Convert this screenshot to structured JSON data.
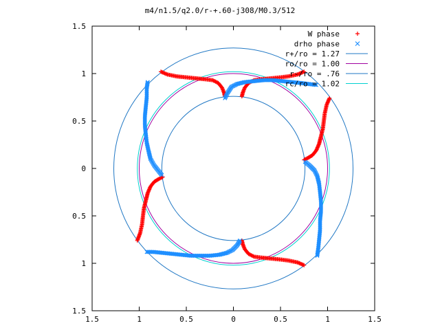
{
  "chart_data": {
    "type": "scatter",
    "title": "m4/n1.5/q2.0/r-+.60-j308/M0.3/512",
    "xlim": [
      -1.5,
      1.5
    ],
    "ylim": [
      -1.5,
      1.5
    ],
    "xticks": [
      -1.5,
      -1,
      -0.5,
      0,
      0.5,
      1,
      1.5
    ],
    "yticks": [
      -1.5,
      -1,
      -0.5,
      0,
      0.5,
      1,
      1.5
    ],
    "xtick_labels": [
      "1.5",
      "1",
      "0.5",
      "0",
      "0.5",
      "1",
      "1.5"
    ],
    "ytick_labels": [
      "1.5",
      "1",
      "0.5",
      "0",
      "0.5",
      "1",
      "1.5"
    ],
    "grid": false,
    "legend_position": "top-right",
    "series": [
      {
        "name": "W phase",
        "kind": "points",
        "marker": "+",
        "color": "#ff0000",
        "arms": [
          [
            [
              -0.77,
              1.02
            ],
            [
              -0.7,
              0.99
            ],
            [
              -0.6,
              0.97
            ],
            [
              -0.5,
              0.96
            ],
            [
              -0.4,
              0.95
            ],
            [
              -0.3,
              0.94
            ],
            [
              -0.22,
              0.93
            ],
            [
              -0.16,
              0.9
            ],
            [
              -0.12,
              0.85
            ],
            [
              -0.1,
              0.8
            ],
            [
              -0.09,
              0.76
            ]
          ],
          [
            [
              0.75,
              1.02
            ],
            [
              0.68,
              0.99
            ],
            [
              0.58,
              0.97
            ],
            [
              0.5,
              0.96
            ],
            [
              0.4,
              0.95
            ],
            [
              0.3,
              0.94
            ],
            [
              0.22,
              0.93
            ],
            [
              0.16,
              0.9
            ],
            [
              0.12,
              0.85
            ],
            [
              0.1,
              0.8
            ],
            [
              0.09,
              0.76
            ]
          ],
          [
            [
              1.02,
              0.74
            ],
            [
              0.99,
              0.67
            ],
            [
              0.97,
              0.58
            ],
            [
              0.96,
              0.5
            ],
            [
              0.95,
              0.42
            ],
            [
              0.93,
              0.34
            ],
            [
              0.91,
              0.26
            ],
            [
              0.88,
              0.19
            ],
            [
              0.84,
              0.14
            ],
            [
              0.79,
              0.11
            ],
            [
              0.75,
              0.09
            ]
          ],
          [
            [
              -1.02,
              -0.76
            ],
            [
              -0.99,
              -0.68
            ],
            [
              -0.97,
              -0.59
            ],
            [
              -0.96,
              -0.5
            ],
            [
              -0.95,
              -0.42
            ],
            [
              -0.93,
              -0.34
            ],
            [
              -0.91,
              -0.26
            ],
            [
              -0.88,
              -0.19
            ],
            [
              -0.84,
              -0.14
            ],
            [
              -0.79,
              -0.11
            ],
            [
              -0.75,
              -0.09
            ]
          ],
          [
            [
              0.75,
              -1.02
            ],
            [
              0.68,
              -0.99
            ],
            [
              0.58,
              -0.97
            ],
            [
              0.5,
              -0.96
            ],
            [
              0.4,
              -0.95
            ],
            [
              0.3,
              -0.94
            ],
            [
              0.22,
              -0.93
            ],
            [
              0.16,
              -0.9
            ],
            [
              0.12,
              -0.85
            ],
            [
              0.1,
              -0.8
            ],
            [
              0.09,
              -0.76
            ]
          ]
        ]
      },
      {
        "name": "drho phase",
        "kind": "points",
        "marker": "x",
        "color": "#1f8fff",
        "arms": [
          [
            [
              -0.09,
              0.74
            ],
            [
              -0.06,
              0.8
            ],
            [
              -0.02,
              0.86
            ],
            [
              0.04,
              0.89
            ],
            [
              0.12,
              0.91
            ],
            [
              0.22,
              0.92
            ],
            [
              0.32,
              0.93
            ],
            [
              0.42,
              0.93
            ],
            [
              0.52,
              0.92
            ],
            [
              0.62,
              0.91
            ],
            [
              0.72,
              0.9
            ],
            [
              0.8,
              0.89
            ],
            [
              0.88,
              0.88
            ]
          ],
          [
            [
              0.76,
              0.07
            ],
            [
              0.81,
              0.03
            ],
            [
              0.86,
              -0.02
            ],
            [
              0.89,
              -0.08
            ],
            [
              0.91,
              -0.16
            ],
            [
              0.92,
              -0.25
            ],
            [
              0.93,
              -0.35
            ],
            [
              0.93,
              -0.45
            ],
            [
              0.92,
              -0.55
            ],
            [
              0.92,
              -0.65
            ],
            [
              0.91,
              -0.75
            ],
            [
              0.9,
              -0.85
            ],
            [
              0.89,
              -0.92
            ]
          ],
          [
            [
              -0.76,
              -0.07
            ],
            [
              -0.8,
              -0.02
            ],
            [
              -0.84,
              0.03
            ],
            [
              -0.88,
              0.1
            ],
            [
              -0.9,
              0.18
            ],
            [
              -0.92,
              0.27
            ],
            [
              -0.93,
              0.36
            ],
            [
              -0.94,
              0.45
            ],
            [
              -0.94,
              0.55
            ],
            [
              -0.93,
              0.65
            ],
            [
              -0.92,
              0.75
            ],
            [
              -0.92,
              0.85
            ],
            [
              -0.91,
              0.91
            ]
          ],
          [
            [
              0.07,
              -0.76
            ],
            [
              0.04,
              -0.81
            ],
            [
              -0.01,
              -0.86
            ],
            [
              -0.07,
              -0.89
            ],
            [
              -0.15,
              -0.91
            ],
            [
              -0.25,
              -0.92
            ],
            [
              -0.35,
              -0.92
            ],
            [
              -0.45,
              -0.92
            ],
            [
              -0.55,
              -0.91
            ],
            [
              -0.65,
              -0.9
            ],
            [
              -0.75,
              -0.89
            ],
            [
              -0.85,
              -0.88
            ],
            [
              -0.92,
              -0.88
            ]
          ]
        ]
      },
      {
        "name": "r+/ro = 1.27",
        "kind": "circle",
        "radius": 1.27,
        "color": "#1f77c4"
      },
      {
        "name": "ro/ro = 1.00",
        "kind": "circle",
        "radius": 1.0,
        "color": "#a0009f"
      },
      {
        "name": "r-/ro = .76",
        "kind": "circle",
        "radius": 0.76,
        "color": "#1f77c4"
      },
      {
        "name": "rc/ro = 1.02",
        "kind": "circle",
        "radius": 1.02,
        "color": "#00d0d0"
      }
    ]
  }
}
